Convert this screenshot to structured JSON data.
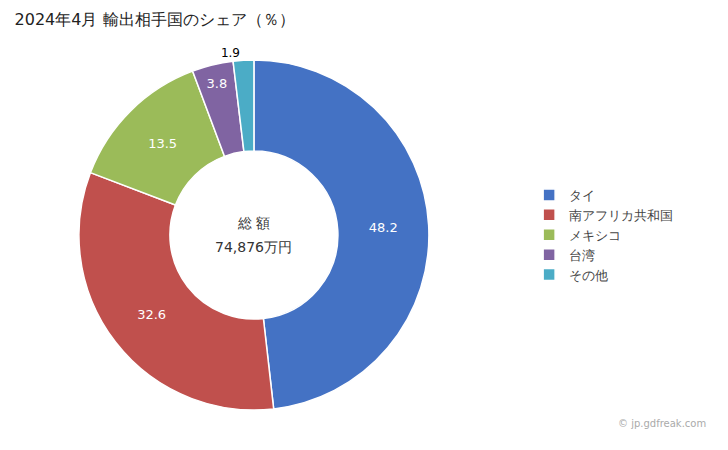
{
  "chart_data": {
    "type": "pie",
    "title": "2024年4月 輸出相手国のシェア（％）",
    "categories": [
      "タイ",
      "南アフリカ共和国",
      "メキシコ",
      "台湾",
      "その他"
    ],
    "values": [
      48.2,
      32.6,
      13.5,
      3.8,
      1.9
    ],
    "colors": [
      "#4472C4",
      "#C0504D",
      "#9BBB59",
      "#8064A2",
      "#4BACC6"
    ],
    "data_labels": true,
    "legend": "right",
    "annotations": [
      "総 額",
      "74,876万円",
      "© jp.gdfreak.com"
    ]
  }
}
